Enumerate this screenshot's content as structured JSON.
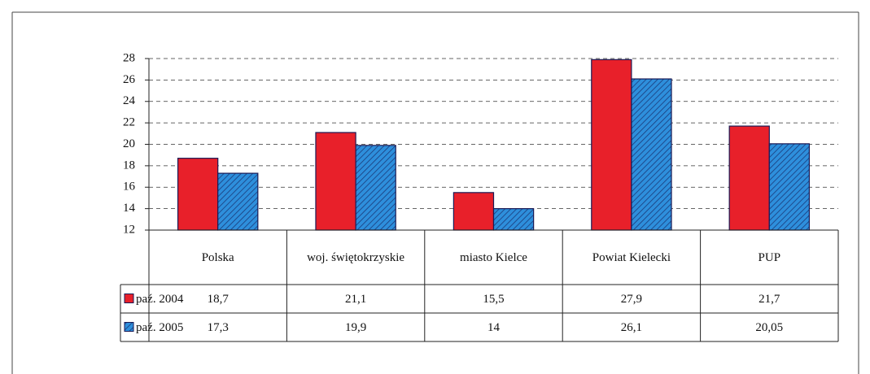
{
  "chart_data": {
    "type": "bar",
    "categories": [
      "Polska",
      "woj. świętokrzyskie",
      "miasto Kielce",
      "Powiat Kielecki",
      "PUP"
    ],
    "series": [
      {
        "name": "paź. 2004",
        "color": "#e8202a",
        "values": [
          18.7,
          21.1,
          15.5,
          27.9,
          21.7
        ],
        "value_labels": [
          "18,7",
          "21,1",
          "15,5",
          "27,9",
          "21,7"
        ]
      },
      {
        "name": "paź. 2005",
        "color": "#2e8fdc",
        "pattern": "diagonal",
        "values": [
          17.3,
          19.9,
          14,
          26.1,
          20.05
        ],
        "value_labels": [
          "17,3",
          "19,9",
          "14",
          "26,1",
          "20,05"
        ]
      }
    ],
    "ylim": [
      12,
      28
    ],
    "yticks": [
      12,
      14,
      16,
      18,
      20,
      22,
      24,
      26,
      28
    ],
    "grid": true,
    "legend": "data-table"
  }
}
